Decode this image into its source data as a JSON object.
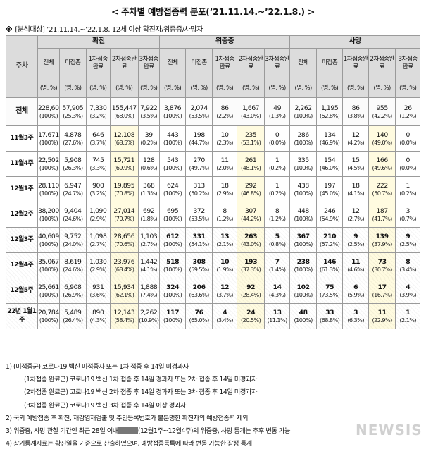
{
  "title": "< 주차별 예방접종력 분포(’21.11.14.~’22.1.8.) >",
  "subtitle_mark": "※",
  "subtitle": "[분석대상] ’21.11.14.~’22.1.8. 12세 이상 확진자/위중증/사망자",
  "header": {
    "week_col": "주차",
    "groups": [
      "확진",
      "위중증",
      "사망"
    ],
    "cols": [
      "전체",
      "미접종",
      "1차접종완료",
      "2차접종완료",
      "3차접종완료"
    ],
    "units": [
      "(명, %)",
      "(명, %)",
      "(명, %)",
      "(명, %)",
      "(명, %)"
    ]
  },
  "rows": [
    {
      "week": "전체",
      "cells": [
        [
          "228,604",
          "(100%)"
        ],
        [
          "57,905",
          "(25.3%)"
        ],
        [
          "7,330",
          "(3.2%)"
        ],
        [
          "155,447",
          "(68.0%)"
        ],
        [
          "7,922",
          "(3.5%)"
        ],
        [
          "3,876",
          "(100%)"
        ],
        [
          "2,074",
          "(53.5%)"
        ],
        [
          "86",
          "(2.2%)"
        ],
        [
          "1,667",
          "(43.0%)"
        ],
        [
          "49",
          "(1.3%)"
        ],
        [
          "2,262",
          "(100%)"
        ],
        [
          "1,195",
          "(52.8%)"
        ],
        [
          "86",
          "(3.8%)"
        ],
        [
          "955",
          "(42.2%)"
        ],
        [
          "26",
          "(1.2%)"
        ]
      ]
    },
    {
      "week": "11월3주",
      "cells": [
        [
          "17,671",
          "(100%)"
        ],
        [
          "4,878",
          "(27.6%)"
        ],
        [
          "646",
          "(3.7%)"
        ],
        [
          "12,108",
          "(68.5%)"
        ],
        [
          "39",
          "(0.2%)"
        ],
        [
          "443",
          "(100%)"
        ],
        [
          "198",
          "(44.7%)"
        ],
        [
          "10",
          "(2.3%)"
        ],
        [
          "235",
          "(53.1%)"
        ],
        [
          "0",
          "(0.0%)"
        ],
        [
          "286",
          "(100%)"
        ],
        [
          "134",
          "(46.9%)"
        ],
        [
          "12",
          "(4.2%)"
        ],
        [
          "140",
          "(49.0%)"
        ],
        [
          "0",
          "(0.0%)"
        ]
      ]
    },
    {
      "week": "11월4주",
      "cells": [
        [
          "22,502",
          "(100%)"
        ],
        [
          "5,908",
          "(26.3%)"
        ],
        [
          "745",
          "(3.3%)"
        ],
        [
          "15,721",
          "(69.9%)"
        ],
        [
          "128",
          "(0.6%)"
        ],
        [
          "543",
          "(100%)"
        ],
        [
          "270",
          "(49.7%)"
        ],
        [
          "11",
          "(2.0%)"
        ],
        [
          "261",
          "(48.1%)"
        ],
        [
          "1",
          "(0.2%)"
        ],
        [
          "335",
          "(100%)"
        ],
        [
          "154",
          "(46.0%)"
        ],
        [
          "15",
          "(4.5%)"
        ],
        [
          "166",
          "(49.6%)"
        ],
        [
          "0",
          "(0.0%)"
        ]
      ]
    },
    {
      "week": "12월1주",
      "cells": [
        [
          "28,110",
          "(100%)"
        ],
        [
          "6,947",
          "(24.7%)"
        ],
        [
          "900",
          "(3.2%)"
        ],
        [
          "19,895",
          "(70.8%)"
        ],
        [
          "368",
          "(1.3%)"
        ],
        [
          "624",
          "(100%)"
        ],
        [
          "313",
          "(50.2%)"
        ],
        [
          "18",
          "(2.9%)"
        ],
        [
          "292",
          "(46.8%)"
        ],
        [
          "1",
          "(0.2%)"
        ],
        [
          "438",
          "(100%)"
        ],
        [
          "197",
          "(45.0%)"
        ],
        [
          "18",
          "(4.1%)"
        ],
        [
          "222",
          "(50.7%)"
        ],
        [
          "1",
          "(0.2%)"
        ]
      ]
    },
    {
      "week": "12월2주",
      "cells": [
        [
          "38,200",
          "(100%)"
        ],
        [
          "9,404",
          "(24.6%)"
        ],
        [
          "1,090",
          "(2.9%)"
        ],
        [
          "27,014",
          "(70.7%)"
        ],
        [
          "692",
          "(1.8%)"
        ],
        [
          "695",
          "(100%)"
        ],
        [
          "372",
          "(53.5%)"
        ],
        [
          "8",
          "(1.2%)"
        ],
        [
          "307",
          "(44.2%)"
        ],
        [
          "8",
          "(1.2%)"
        ],
        [
          "448",
          "(100%)"
        ],
        [
          "246",
          "(54.9%)"
        ],
        [
          "12",
          "(2.7%)"
        ],
        [
          "187",
          "(41.7%)"
        ],
        [
          "3",
          "(0.7%)"
        ]
      ]
    },
    {
      "week": "12월3주",
      "cells": [
        [
          "40,609",
          "(100%)"
        ],
        [
          "9,752",
          "(24.0%)"
        ],
        [
          "1,098",
          "(2.7%)"
        ],
        [
          "28,656",
          "(70.6%)"
        ],
        [
          "1,103",
          "(2.7%)"
        ],
        [
          "612",
          "(100%)"
        ],
        [
          "331",
          "(54.1%)"
        ],
        [
          "13",
          "(2.1%)"
        ],
        [
          "263",
          "(43.0%)"
        ],
        [
          "5",
          "(0.8%)"
        ],
        [
          "367",
          "(100%)"
        ],
        [
          "210",
          "(57.2%)"
        ],
        [
          "9",
          "(2.5%)"
        ],
        [
          "139",
          "(37.9%)"
        ],
        [
          "9",
          "(2.5%)"
        ]
      ]
    },
    {
      "week": "12월4주",
      "cells": [
        [
          "35,067",
          "(100%)"
        ],
        [
          "8,619",
          "(24.6%)"
        ],
        [
          "1,030",
          "(2.9%)"
        ],
        [
          "23,976",
          "(68.4%)"
        ],
        [
          "1,442",
          "(4.1%)"
        ],
        [
          "518",
          "(100%)"
        ],
        [
          "308",
          "(59.5%)"
        ],
        [
          "10",
          "(1.9%)"
        ],
        [
          "193",
          "(37.3%)"
        ],
        [
          "7",
          "(1.4%)"
        ],
        [
          "238",
          "(100%)"
        ],
        [
          "146",
          "(61.3%)"
        ],
        [
          "11",
          "(4.6%)"
        ],
        [
          "73",
          "(30.7%)"
        ],
        [
          "8",
          "(3.4%)"
        ]
      ]
    },
    {
      "week": "12월5주",
      "cells": [
        [
          "25,661",
          "(100%)"
        ],
        [
          "6,908",
          "(26.9%)"
        ],
        [
          "931",
          "(3.6%)"
        ],
        [
          "15,934",
          "(62.1%)"
        ],
        [
          "1,888",
          "(7.4%)"
        ],
        [
          "324",
          "(100%)"
        ],
        [
          "206",
          "(63.6%)"
        ],
        [
          "12",
          "(3.7%)"
        ],
        [
          "92",
          "(28.4%)"
        ],
        [
          "14",
          "(4.3%)"
        ],
        [
          "102",
          "(100%)"
        ],
        [
          "75",
          "(73.5%)"
        ],
        [
          "6",
          "(5.9%)"
        ],
        [
          "17",
          "(16.7%)"
        ],
        [
          "4",
          "(3.9%)"
        ]
      ]
    },
    {
      "week": "22년 1월1주",
      "cells": [
        [
          "20,784",
          "(100%)"
        ],
        [
          "5,489",
          "(26.4%)"
        ],
        [
          "890",
          "(4.3%)"
        ],
        [
          "12,143",
          "(58.4%)"
        ],
        [
          "2,262",
          "(10.9%)"
        ],
        [
          "117",
          "(100%)"
        ],
        [
          "76",
          "(65.0%)"
        ],
        [
          "4",
          "(3.4%)"
        ],
        [
          "24",
          "(20.5%)"
        ],
        [
          "13",
          "(11.1%)"
        ],
        [
          "48",
          "(100%)"
        ],
        [
          "33",
          "(68.8%)"
        ],
        [
          "3",
          "(6.3%)"
        ],
        [
          "11",
          "(22.9%)"
        ],
        [
          "1",
          "(2.1%)"
        ]
      ]
    }
  ],
  "notes": [
    "1) (미접종군) 코로나19 백신 미접종자 또는 1차 접종 후 14일 미경과자",
    "(1차접종 완료군) 코로나19 백신 1차 접종 후 14일 경과자 또는 2차 접종 후 14일 미경과자",
    "(2차접종 완료군) 코로나19 백신 2차 접종 후 14일 경과자 또는 3차 접종 후 14일 미경과자",
    "(3차접종 완료군) 코로나19 백신 3차 접종 후 14일 이상 경과자",
    "2) 국외 예방접종 후 확진, 재감염재검출 및 주민등록번호가 불분명한 확진자의 예방접종력 제외",
    "3) 위중증, 사망 관찰 기간인 최근 28일 이내",
    "(12월1주~12월4주)의 위중증, 사망 통계는 추후 변동 가능",
    "4) 상기통계자료는 확진일을 기준으로 산출하였으며, 예방접종등록에 따라 변동 가능한 잠정 통계"
  ],
  "watermark": "NEWSIS"
}
